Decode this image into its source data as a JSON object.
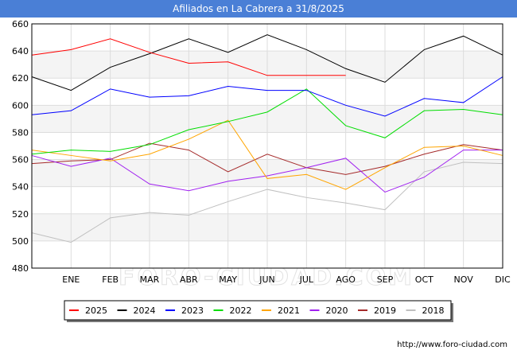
{
  "chart_data": {
    "type": "line",
    "title": "Afiliados en La Cabrera a 31/8/2025",
    "watermark": "FORO-CIUDAD.COM",
    "source_url": "http://www.foro-ciudad.com",
    "xlabel": "",
    "ylabel": "",
    "categories": [
      "",
      "ENE",
      "FEB",
      "MAR",
      "ABR",
      "MAY",
      "JUN",
      "JUL",
      "AGO",
      "SEP",
      "OCT",
      "NOV",
      "DIC"
    ],
    "ylim": [
      480,
      660
    ],
    "yticks": [
      480,
      500,
      520,
      540,
      560,
      580,
      600,
      620,
      640,
      660
    ],
    "grid": true,
    "legend_position": "bottom",
    "series": [
      {
        "name": "2025",
        "color": "#ff0000",
        "values": [
          637,
          641,
          649,
          639,
          631,
          632,
          622,
          622,
          622,
          null,
          null,
          null,
          null
        ]
      },
      {
        "name": "2024",
        "color": "#000000",
        "values": [
          621,
          611,
          628,
          638,
          649,
          639,
          652,
          641,
          627,
          617,
          641,
          651,
          637
        ]
      },
      {
        "name": "2023",
        "color": "#0000ff",
        "values": [
          593,
          596,
          612,
          606,
          607,
          614,
          611,
          611,
          600,
          592,
          605,
          602,
          621
        ]
      },
      {
        "name": "2022",
        "color": "#00dd00",
        "values": [
          564,
          567,
          566,
          571,
          582,
          588,
          595,
          612,
          585,
          576,
          596,
          597,
          593
        ]
      },
      {
        "name": "2021",
        "color": "#ffa500",
        "values": [
          567,
          563,
          559,
          564,
          575,
          589,
          546,
          549,
          538,
          554,
          569,
          570,
          563
        ]
      },
      {
        "name": "2020",
        "color": "#a020f0",
        "values": [
          563,
          555,
          561,
          542,
          537,
          544,
          548,
          554,
          561,
          536,
          547,
          567,
          567
        ]
      },
      {
        "name": "2019",
        "color": "#a52a2a",
        "values": [
          557,
          559,
          560,
          572,
          567,
          551,
          564,
          554,
          549,
          555,
          564,
          571,
          567
        ]
      },
      {
        "name": "2018",
        "color": "#c0c0c0",
        "values": [
          506,
          499,
          517,
          521,
          519,
          529,
          538,
          532,
          528,
          523,
          551,
          558,
          557
        ]
      }
    ]
  }
}
